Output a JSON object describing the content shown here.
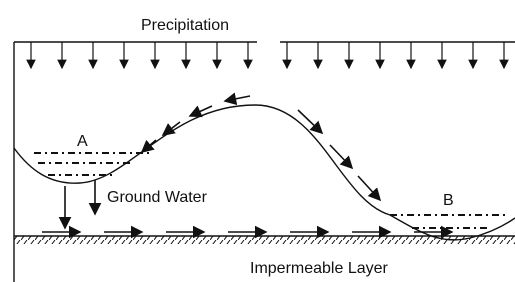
{
  "title": "Precipitation",
  "labels": {
    "a": "A",
    "b": "B",
    "ground_water": "Ground Water",
    "impermeable": "Impermeable Layer"
  }
}
